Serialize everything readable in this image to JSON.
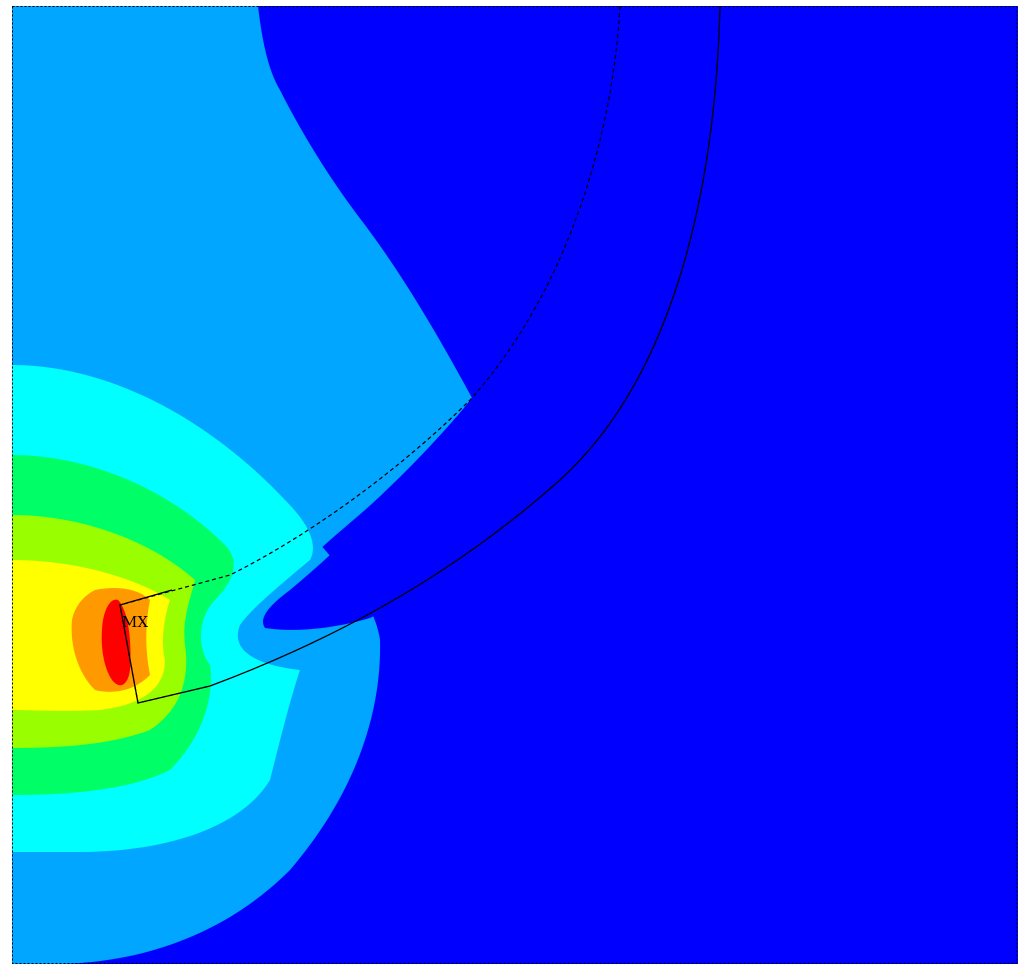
{
  "plot": {
    "marker_label": "MX",
    "band_colors": {
      "background": "#0000FF",
      "level_1": "#00A6FF",
      "level_2": "#00FFFF",
      "level_3": "#00FF66",
      "level_4": "#99FF00",
      "level_5": "#FFFF00",
      "level_6": "#FF9900",
      "level_7": "#FF0000"
    },
    "border_color": "#000000"
  }
}
